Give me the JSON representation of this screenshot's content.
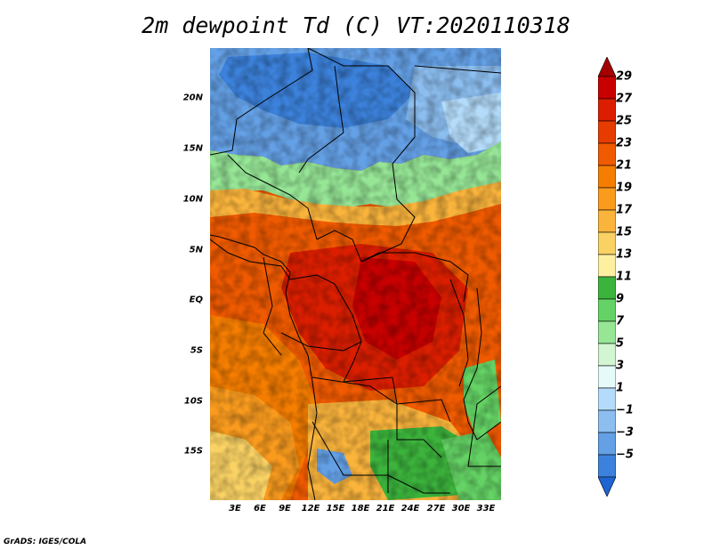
{
  "title": "2m dewpoint Td (C) VT:2020110318",
  "footer": "GrADS: IGES/COLA",
  "map": {
    "lon_range_deg": [
      0,
      35
    ],
    "lat_range_deg": [
      -20,
      25
    ],
    "lat_ticks": [
      {
        "label": "20N",
        "value": 20
      },
      {
        "label": "15N",
        "value": 15
      },
      {
        "label": "10N",
        "value": 10
      },
      {
        "label": "5N",
        "value": 5
      },
      {
        "label": "EQ",
        "value": 0
      },
      {
        "label": "5S",
        "value": -5
      },
      {
        "label": "10S",
        "value": -10
      },
      {
        "label": "15S",
        "value": -15
      }
    ],
    "lon_ticks": [
      {
        "label": "3E",
        "value": 3
      },
      {
        "label": "6E",
        "value": 6
      },
      {
        "label": "9E",
        "value": 9
      },
      {
        "label": "12E",
        "value": 12
      },
      {
        "label": "15E",
        "value": 15
      },
      {
        "label": "18E",
        "value": 18
      },
      {
        "label": "21E",
        "value": 21
      },
      {
        "label": "24E",
        "value": 24
      },
      {
        "label": "27E",
        "value": 27
      },
      {
        "label": "30E",
        "value": 30
      },
      {
        "label": "33E",
        "value": 33
      }
    ]
  },
  "colorbar": {
    "labels": [
      "29",
      "27",
      "25",
      "23",
      "21",
      "19",
      "17",
      "15",
      "13",
      "11",
      "9",
      "7",
      "5",
      "3",
      "1",
      "−1",
      "−3",
      "−5"
    ],
    "colors": [
      "#a50000",
      "#c80000",
      "#dc1e00",
      "#e63c00",
      "#f05a00",
      "#f57d00",
      "#fa9b1e",
      "#fab43c",
      "#fad264",
      "#fff0a0",
      "#3cb43c",
      "#64d264",
      "#96e696",
      "#d2f5d2",
      "#e6fafa",
      "#b4dcfa",
      "#8cbef0",
      "#64a0e6",
      "#3c82dc",
      "#1e64d2"
    ]
  }
}
